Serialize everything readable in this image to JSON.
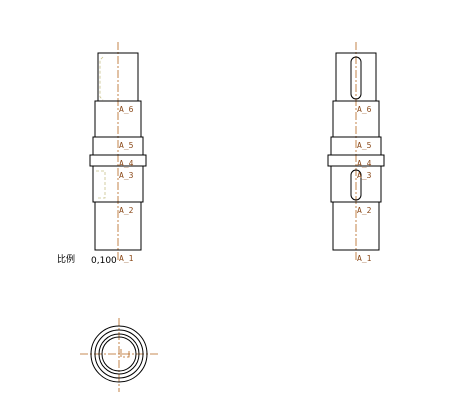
{
  "scale": {
    "label": "比例",
    "value": "0,100"
  },
  "section_labels": [
    "A_6",
    "A_5",
    "A_4",
    "A_3",
    "A_2",
    "A_1"
  ],
  "colors": {
    "outline": "#000000",
    "centerline": "#b5651d",
    "label": "#8b4a1a",
    "hidden_line": "#c9c28a"
  }
}
